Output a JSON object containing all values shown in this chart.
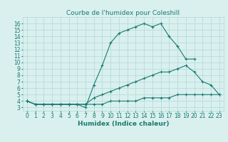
{
  "line1_x": [
    0,
    1,
    2,
    3,
    4,
    5,
    6,
    7,
    8,
    9,
    10,
    11,
    12,
    13,
    14,
    15,
    16,
    17,
    18,
    19,
    20
  ],
  "line1_y": [
    4.0,
    3.5,
    3.5,
    3.5,
    3.5,
    3.5,
    3.5,
    3.0,
    6.5,
    9.5,
    13.0,
    14.5,
    15.0,
    15.5,
    16.0,
    15.5,
    16.0,
    14.0,
    12.5,
    10.5,
    10.5
  ],
  "line2_x": [
    0,
    1,
    2,
    3,
    4,
    5,
    6,
    7,
    8,
    9,
    10,
    11,
    12,
    13,
    14,
    15,
    16,
    17,
    18,
    19,
    20,
    21,
    22,
    23
  ],
  "line2_y": [
    4.0,
    3.5,
    3.5,
    3.5,
    3.5,
    3.5,
    3.5,
    3.5,
    4.5,
    5.0,
    5.5,
    6.0,
    6.5,
    7.0,
    7.5,
    8.0,
    8.5,
    8.5,
    9.0,
    9.5,
    8.5,
    7.0,
    6.5,
    5.0
  ],
  "line3_x": [
    0,
    1,
    2,
    3,
    4,
    5,
    6,
    7,
    8,
    9,
    10,
    11,
    12,
    13,
    14,
    15,
    16,
    17,
    18,
    19,
    20,
    21,
    22,
    23
  ],
  "line3_y": [
    4.0,
    3.5,
    3.5,
    3.5,
    3.5,
    3.5,
    3.5,
    3.5,
    3.5,
    3.5,
    4.0,
    4.0,
    4.0,
    4.0,
    4.5,
    4.5,
    4.5,
    4.5,
    5.0,
    5.0,
    5.0,
    5.0,
    5.0,
    5.0
  ],
  "line_color": "#1a7a6e",
  "bg_color": "#d9f0ef",
  "grid_color": "#b0d8d5",
  "title": "Courbe de l'humidex pour Coleshill",
  "xlabel": "Humidex (Indice chaleur)",
  "xlim": [
    -0.5,
    23.5
  ],
  "ylim": [
    2.5,
    17.0
  ],
  "xticks": [
    0,
    1,
    2,
    3,
    4,
    5,
    6,
    7,
    8,
    9,
    10,
    11,
    12,
    13,
    14,
    15,
    16,
    17,
    18,
    19,
    20,
    21,
    22,
    23
  ],
  "yticks": [
    3,
    4,
    5,
    6,
    7,
    8,
    9,
    10,
    11,
    12,
    13,
    14,
    15,
    16
  ],
  "title_fontsize": 6.5,
  "label_fontsize": 6.5,
  "tick_fontsize": 5.5
}
